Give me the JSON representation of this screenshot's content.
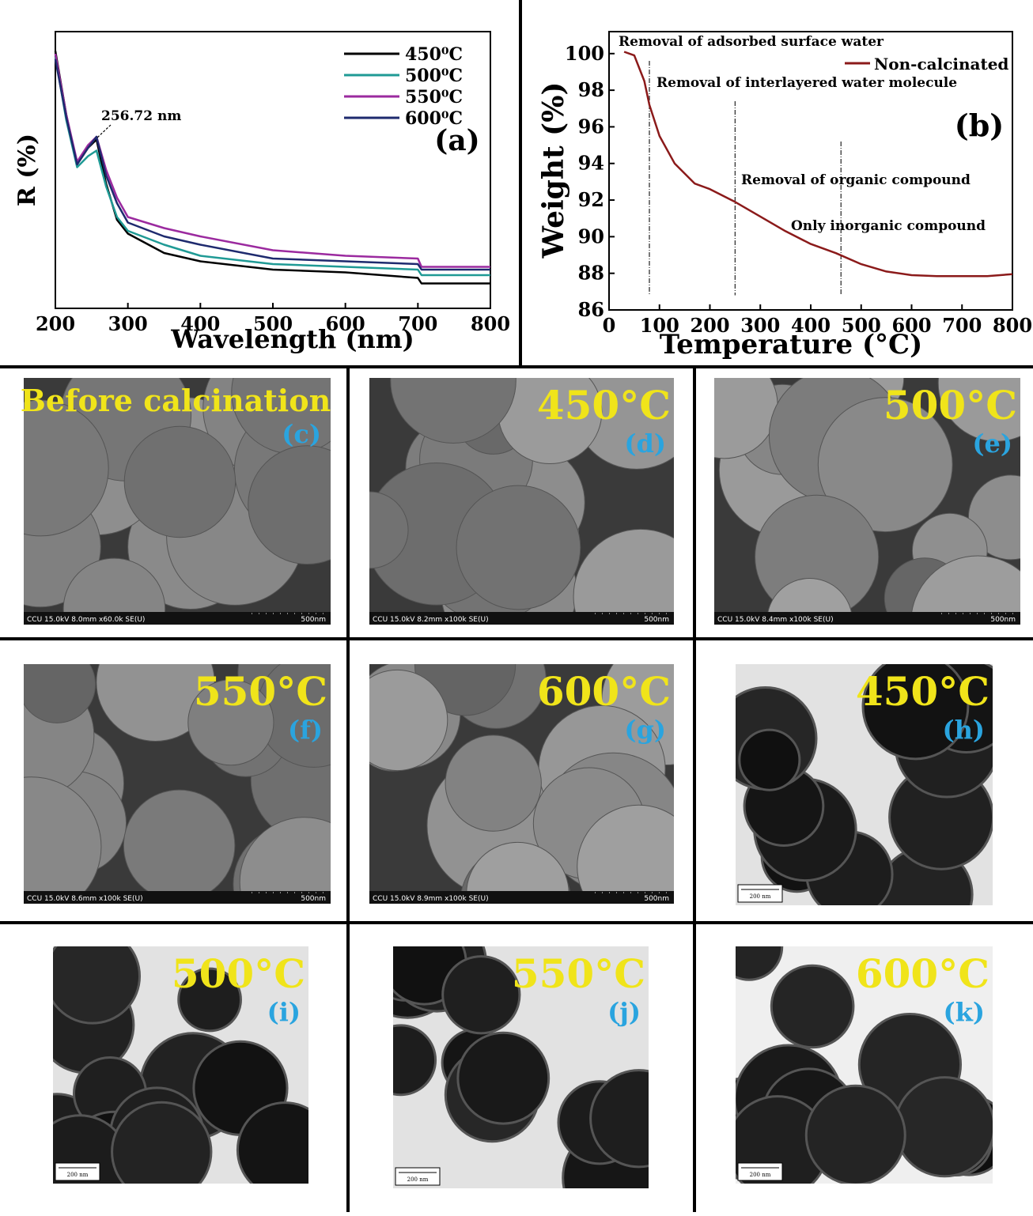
{
  "chart_data": [
    {
      "type": "line",
      "panel_label": "(a)",
      "x_label": "Wavelength (nm)",
      "y_label": "R (%)",
      "annotation": "256.72 nm",
      "legend": "upper right",
      "x": [
        200,
        215,
        230,
        245,
        256.72,
        270,
        285,
        300,
        350,
        400,
        500,
        600,
        700,
        705,
        800
      ],
      "series": [
        {
          "name": "450⁰C",
          "color": "#000000",
          "values": [
            93,
            70,
            52,
            58,
            61,
            45,
            32,
            27,
            20,
            17,
            14,
            13,
            11,
            9,
            9
          ]
        },
        {
          "name": "500⁰C",
          "color": "#1f9a95",
          "values": [
            91,
            68,
            51,
            55,
            57,
            44,
            33,
            28,
            23,
            19,
            16,
            15,
            14,
            12,
            12
          ]
        },
        {
          "name": "550⁰C",
          "color": "#9b2a9f",
          "values": [
            92,
            70,
            53,
            59,
            62,
            50,
            40,
            33,
            29,
            26,
            21,
            19,
            18,
            15,
            15
          ]
        },
        {
          "name": "600⁰C",
          "color": "#1e2a6e",
          "values": [
            90,
            69,
            52,
            58,
            62,
            48,
            38,
            31,
            26,
            23,
            18,
            17,
            16,
            14,
            14
          ]
        }
      ],
      "xlim": [
        200,
        800
      ],
      "ylim": [
        0,
        100
      ],
      "xticks": [
        200,
        300,
        400,
        500,
        600,
        700,
        800
      ]
    },
    {
      "type": "line",
      "panel_label": "(b)",
      "x_label": "Temperature (°C)",
      "y_label": "Weight (%)",
      "legend": "upper right",
      "annotations": [
        "Removal of adsorbed surface water",
        "Removal of interlayered water molecule",
        "Removal of organic compound",
        "Only inorganic compound"
      ],
      "vlines": [
        80,
        250,
        460
      ],
      "x": [
        30,
        50,
        70,
        80,
        100,
        130,
        170,
        200,
        250,
        300,
        350,
        400,
        450,
        500,
        550,
        600,
        650,
        700,
        750,
        800
      ],
      "series": [
        {
          "name": "Non-calcinated",
          "color": "#8b1a1a",
          "values": [
            100.1,
            99.9,
            98.5,
            97.2,
            95.5,
            94,
            92.9,
            92.6,
            91.9,
            91.1,
            90.3,
            89.6,
            89.1,
            88.5,
            88.1,
            87.9,
            87.85,
            87.85,
            87.85,
            87.95
          ]
        }
      ],
      "xlim": [
        0,
        800
      ],
      "ylim": [
        86,
        101.2
      ],
      "xticks": [
        0,
        100,
        200,
        300,
        400,
        500,
        600,
        700,
        800
      ],
      "yticks": [
        86,
        88,
        90,
        92,
        94,
        96,
        98,
        100
      ]
    }
  ],
  "panels": [
    {
      "label": "Before calcination",
      "letter": "(c)",
      "kind": "SEM",
      "info": "CCU 15.0kV 8.0mm x60.0k SE(U)",
      "scale": "500nm"
    },
    {
      "label": "450°C",
      "letter": "(d)",
      "kind": "SEM",
      "info": "CCU 15.0kV 8.2mm x100k SE(U)",
      "scale": "500nm"
    },
    {
      "label": "500°C",
      "letter": "(e)",
      "kind": "SEM",
      "info": "CCU 15.0kV 8.4mm x100k SE(U)",
      "scale": "500nm"
    },
    {
      "label": "550°C",
      "letter": "(f)",
      "kind": "SEM",
      "info": "CCU 15.0kV 8.6mm x100k SE(U)",
      "scale": "500nm"
    },
    {
      "label": "600°C",
      "letter": "(g)",
      "kind": "SEM",
      "info": "CCU 15.0kV 8.9mm x100k SE(U)",
      "scale": "500nm"
    },
    {
      "label": "450°C",
      "letter": "(h)",
      "kind": "TEM",
      "scale": "200 nm"
    },
    {
      "label": "500°C",
      "letter": "(i)",
      "kind": "TEM",
      "scale": "200 nm"
    },
    {
      "label": "550°C",
      "letter": "(j)",
      "kind": "TEM",
      "scale": "200 nm"
    },
    {
      "label": "600°C",
      "letter": "(k)",
      "kind": "TEM",
      "scale": "200 nm"
    }
  ]
}
